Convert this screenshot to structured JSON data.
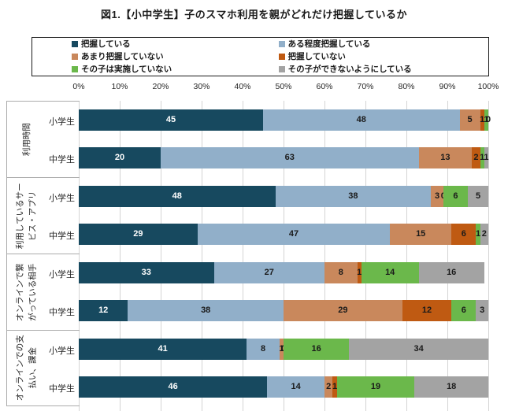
{
  "page": {
    "title": "図1.【小中学生】子のスマホ利用を親がどれだけ把握しているか"
  },
  "chart_data": {
    "type": "bar",
    "stacked": true,
    "orientation": "horizontal",
    "title": "図1.【小中学生】子のスマホ利用を親がどれだけ把握しているか",
    "x_axis": {
      "min": 0,
      "max": 100,
      "tick_labels": [
        "0%",
        "10%",
        "20%",
        "30%",
        "40%",
        "50%",
        "60%",
        "70%",
        "80%",
        "90%",
        "100%"
      ],
      "grid": true
    },
    "legend_position": "top",
    "legend": [
      {
        "label": "把握している",
        "color": "#17495F"
      },
      {
        "label": "ある程度把握している",
        "color": "#91AFC9"
      },
      {
        "label": "あまり把握していない",
        "color": "#C9885C"
      },
      {
        "label": "把握していない",
        "color": "#BF5A12"
      },
      {
        "label": "その子は実施していない",
        "color": "#6BB84B"
      },
      {
        "label": "その子ができないようにしている",
        "color": "#A3A3A3"
      }
    ],
    "value_label_style": {
      "on_first_series": "#FFFFFF",
      "on_others": "#1A1A1A"
    },
    "groups": [
      {
        "label": "利用時間",
        "label_lines": [
          "利用時間"
        ],
        "rows": [
          {
            "label": "小学生",
            "values": [
              45,
              48,
              5,
              1,
              1,
              0
            ]
          },
          {
            "label": "中学生",
            "values": [
              20,
              63,
              13,
              2,
              1,
              1
            ]
          }
        ]
      },
      {
        "label": "利用しているサービス・アプリ",
        "label_lines": [
          "利用しているサー",
          "ビス・アプリ"
        ],
        "rows": [
          {
            "label": "小学生",
            "values": [
              48,
              38,
              3,
              0,
              6,
              5
            ]
          },
          {
            "label": "中学生",
            "values": [
              29,
              47,
              15,
              6,
              1,
              2
            ]
          }
        ]
      },
      {
        "label": "オンラインで繋がっている相手",
        "label_lines": [
          "オンラインで繋",
          "がっている相手"
        ],
        "rows": [
          {
            "label": "小学生",
            "values": [
              33,
              27,
              8,
              1,
              14,
              16
            ]
          },
          {
            "label": "中学生",
            "values": [
              12,
              38,
              29,
              12,
              6,
              3
            ]
          }
        ]
      },
      {
        "label": "オンラインでの支払い、課金",
        "label_lines": [
          "オンラインでの支",
          "払い、課金"
        ],
        "rows": [
          {
            "label": "小学生",
            "values": [
              41,
              8,
              1,
              0,
              16,
              34
            ]
          },
          {
            "label": "中学生",
            "values": [
              46,
              14,
              2,
              1,
              19,
              18
            ]
          }
        ]
      }
    ]
  },
  "colors": {
    "grid_line": "#D4D4D4",
    "axis_box": "#ABABAB",
    "text": "#262626"
  }
}
